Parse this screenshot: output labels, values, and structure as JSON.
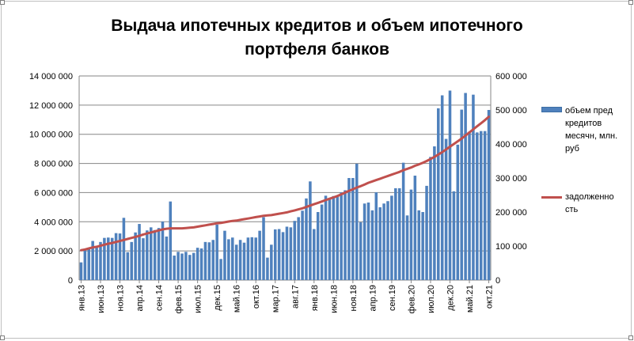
{
  "chart_data": {
    "type": "bar",
    "title_lines": [
      "Выдача ипотечных кредитов и объем ипотечного",
      "портфеля банков"
    ],
    "left_axis": {
      "min": 0,
      "max": 14000000,
      "ticks": [
        "0",
        "2 000 000",
        "4 000 000",
        "6 000 000",
        "8 000 000",
        "10 000 000",
        "12 000 000",
        "14 000 000"
      ]
    },
    "right_axis": {
      "min": 0,
      "max": 600000,
      "ticks": [
        "0",
        "100 000",
        "200 000",
        "300 000",
        "400 000",
        "500 000",
        "600 000"
      ]
    },
    "x_tick_labels": [
      "янв.13",
      "июн.13",
      "ноя.13",
      "апр.14",
      "сен.14",
      "фев.15",
      "июл.15",
      "дек.15",
      "май.16",
      "окт.16",
      "мар.17",
      "авг.17",
      "янв.18",
      "июн.18",
      "ноя.18",
      "апр.19",
      "сен.19",
      "фев.20",
      "июл.20",
      "дек.20",
      "май.21",
      "окт.21"
    ],
    "grid": true,
    "legend_position": "right",
    "series": [
      {
        "name": "объем пред кредитов месячн, млн. руб",
        "type": "bar",
        "axis": "right",
        "color": "#4f81bd",
        "start": "янв.13",
        "values": [
          52000,
          87000,
          95000,
          115000,
          96000,
          112000,
          124000,
          125000,
          124000,
          138000,
          137000,
          183000,
          82000,
          112000,
          140000,
          165000,
          123000,
          146000,
          155000,
          147000,
          153000,
          172000,
          128000,
          231000,
          72000,
          83000,
          78000,
          83000,
          74000,
          80000,
          95000,
          93000,
          112000,
          111000,
          118000,
          163000,
          62000,
          145000,
          120000,
          125000,
          104000,
          118000,
          110000,
          125000,
          126000,
          125000,
          145000,
          185000,
          66000,
          104000,
          149000,
          150000,
          141000,
          157000,
          155000,
          174000,
          185000,
          204000,
          240000,
          290000,
          150000,
          200000,
          222000,
          248000,
          237000,
          247000,
          249000,
          258000,
          264000,
          300000,
          300000,
          342000,
          170000,
          225000,
          228000,
          205000,
          258000,
          214000,
          225000,
          232000,
          248000,
          270000,
          270000,
          345000,
          190000,
          266000,
          307000,
          205000,
          200000,
          277000,
          362000,
          393000,
          505000,
          543000,
          415000,
          557000,
          261000,
          398000,
          501000,
          550000,
          436000,
          545000,
          434000,
          438000,
          438000,
          500000
        ]
      },
      {
        "name": "задолженность",
        "type": "line",
        "axis": "right",
        "color": "#c0504d",
        "start": "янв.13",
        "values": [
          88000,
          90000,
          93000,
          96000,
          98000,
          101000,
          104000,
          107000,
          109000,
          112000,
          115000,
          118000,
          121000,
          124000,
          127000,
          130000,
          134000,
          137000,
          140000,
          143000,
          146000,
          149000,
          151000,
          152000,
          152000,
          152000,
          152000,
          153000,
          154000,
          155000,
          157000,
          159000,
          161000,
          163000,
          165000,
          167000,
          168000,
          170000,
          172000,
          174000,
          175000,
          177000,
          179000,
          181000,
          183000,
          185000,
          187000,
          189000,
          190000,
          191000,
          193000,
          195000,
          197000,
          199000,
          202000,
          205000,
          208000,
          211000,
          215000,
          219000,
          223000,
          227000,
          231000,
          235000,
          239000,
          243000,
          247000,
          252000,
          257000,
          262000,
          267000,
          272000,
          276000,
          281000,
          286000,
          290000,
          294000,
          298000,
          302000,
          306000,
          310000,
          314000,
          318000,
          323000,
          327000,
          331000,
          336000,
          340000,
          345000,
          350000,
          356000,
          362000,
          369000,
          376000,
          384000,
          392000,
          400000,
          408000,
          416000,
          425000,
          434000,
          443000,
          452000,
          461000,
          470000,
          480000
        ]
      }
    ]
  },
  "legend": {
    "bar_label": "объем пред кредитов месячн, млн. руб",
    "line_label": "задолженность"
  }
}
